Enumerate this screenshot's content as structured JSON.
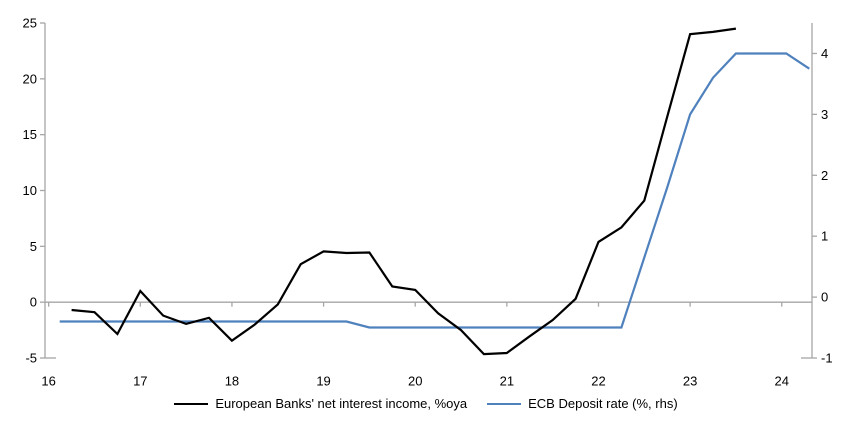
{
  "chart_data": {
    "type": "line",
    "title": "",
    "x_axis": {
      "min": 15.96,
      "max": 24.33,
      "ticks": [
        16,
        17,
        18,
        19,
        20,
        21,
        22,
        23,
        24
      ],
      "tick_labels": [
        "16",
        "17",
        "18",
        "19",
        "20",
        "21",
        "22",
        "23",
        "24"
      ]
    },
    "left_axis": {
      "min": -5,
      "max": 25,
      "ticks": [
        -5,
        0,
        5,
        10,
        15,
        20,
        25
      ]
    },
    "right_axis": {
      "min": -1,
      "max": 4.5,
      "ticks": [
        -1,
        0,
        1,
        2,
        3,
        4
      ]
    },
    "grid": "zero-line-only",
    "legend_position": "bottom-center",
    "series": [
      {
        "name": "European Banks' net interest income, %oya",
        "axis": "left",
        "color": "#000000",
        "x": [
          16.25,
          16.5,
          16.75,
          17.0,
          17.25,
          17.5,
          17.75,
          18.0,
          18.25,
          18.5,
          18.75,
          19.0,
          19.25,
          19.5,
          19.75,
          20.0,
          20.25,
          20.5,
          20.75,
          21.0,
          21.25,
          21.5,
          21.75,
          22.0,
          22.25,
          22.5,
          22.75,
          23.0,
          23.25,
          23.5
        ],
        "values": [
          -0.7,
          -0.9,
          -2.85,
          1.0,
          -1.2,
          -1.95,
          -1.4,
          -3.45,
          -2.0,
          -0.2,
          3.4,
          4.55,
          4.4,
          4.45,
          1.4,
          1.1,
          -1.0,
          -2.5,
          -4.65,
          -4.55,
          -3.05,
          -1.6,
          0.3,
          5.4,
          6.7,
          9.1,
          16.6,
          24.0,
          24.2,
          24.5
        ]
      },
      {
        "name": "ECB Deposit rate (%, rhs)",
        "axis": "right",
        "color": "#4F81BD",
        "x": [
          16.12,
          16.5,
          17.0,
          17.5,
          18.0,
          18.5,
          19.0,
          19.25,
          19.5,
          20.0,
          20.5,
          21.0,
          21.5,
          22.0,
          22.25,
          22.5,
          22.75,
          23.0,
          23.25,
          23.5,
          23.75,
          24.05,
          24.3
        ],
        "values": [
          -0.4,
          -0.4,
          -0.4,
          -0.4,
          -0.4,
          -0.4,
          -0.4,
          -0.4,
          -0.5,
          -0.5,
          -0.5,
          -0.5,
          -0.5,
          -0.5,
          -0.5,
          0.65,
          1.8,
          3.0,
          3.6,
          4.0,
          4.0,
          4.0,
          3.75
        ]
      }
    ]
  },
  "colors": {
    "background": "#FFFFFF",
    "axis": "#A6A6A6",
    "zero_line": "#A6A6A6",
    "text": "#000000",
    "series_black": "#000000",
    "series_blue": "#4F81BD"
  }
}
